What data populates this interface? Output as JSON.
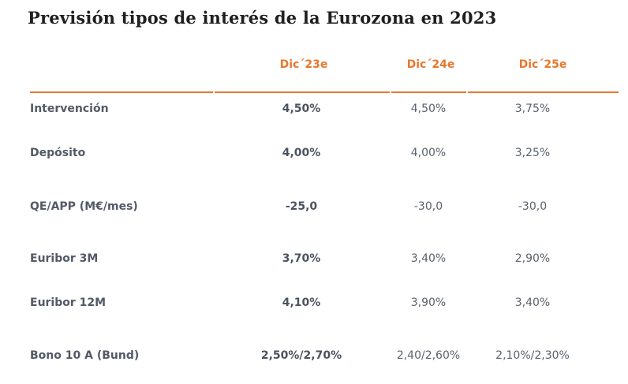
{
  "title": "Previsión tipos de interés de la Eurozona en 2023",
  "columns": [
    "Dic´23e",
    "Dic´24e",
    "Dic´25e"
  ],
  "rows": [
    {
      "label": "Intervención",
      "values": [
        "4,50%",
        "4,50%",
        "3,75%"
      ]
    },
    {
      "label": "Depósito",
      "values": [
        "4,00%",
        "4,00%",
        "3,25%"
      ]
    },
    {
      "label": "QE/APP (M€/mes)",
      "values": [
        "-25,0",
        "-30,0",
        "-30,0"
      ]
    },
    {
      "label": "Euribor 3M",
      "values": [
        "3,70%",
        "3,40%",
        "2,90%"
      ]
    },
    {
      "label": "Euribor 12M",
      "values": [
        "4,10%",
        "3,90%",
        "3,40%"
      ]
    },
    {
      "label": "Bono 10 A (Bund)",
      "values": [
        "2,50%/2,70%",
        "2,40/2,60%",
        "2,10%/2,30%"
      ]
    }
  ],
  "colors": {
    "accent": "#e8782c",
    "title": "#1f1f1f",
    "text": "#505865"
  }
}
